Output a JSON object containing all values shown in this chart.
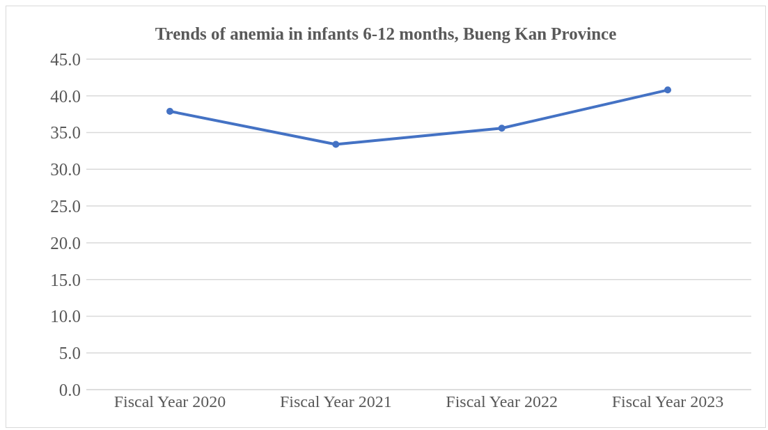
{
  "chart_data": {
    "type": "line",
    "title": "Trends of anemia in infants 6-12 months, Bueng Kan Province",
    "categories": [
      "Fiscal Year 2020",
      "Fiscal Year 2021",
      "Fiscal Year 2022",
      "Fiscal Year 2023"
    ],
    "series": [
      {
        "color": "#4472c4",
        "values": [
          37.9,
          33.4,
          35.6,
          40.8
        ]
      }
    ],
    "ylim": [
      0,
      45
    ],
    "yticks": [
      {
        "value": 0,
        "label": "0.0"
      },
      {
        "value": 5,
        "label": "5.0"
      },
      {
        "value": 10,
        "label": "10.0"
      },
      {
        "value": 15,
        "label": "15.0"
      },
      {
        "value": 20,
        "label": "20.0"
      },
      {
        "value": 25,
        "label": "25.0"
      },
      {
        "value": 30,
        "label": "30.0"
      },
      {
        "value": 35,
        "label": "35.0"
      },
      {
        "value": 40,
        "label": "40.0"
      },
      {
        "value": 45,
        "label": "45.0"
      }
    ],
    "grid": "y",
    "legend": false,
    "marker": "circle",
    "line_style": "solid"
  }
}
